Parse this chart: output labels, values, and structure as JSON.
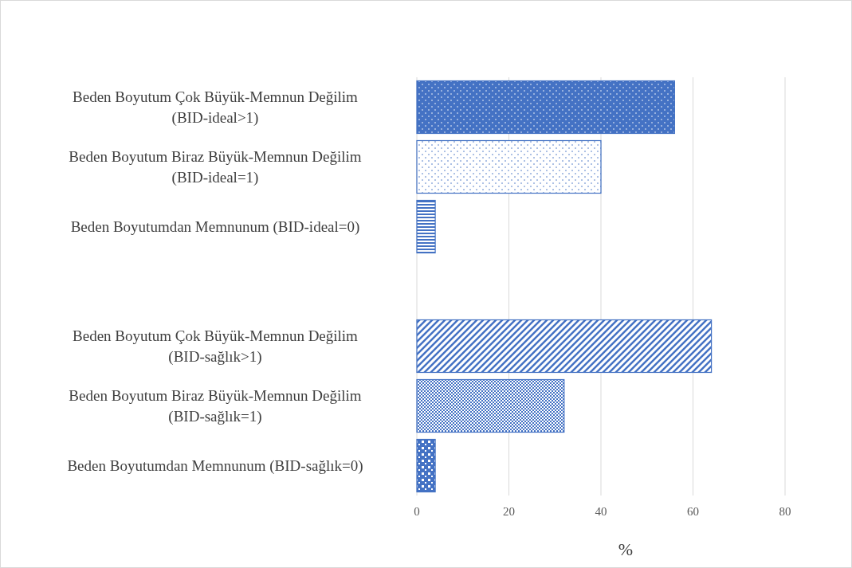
{
  "chart_data": {
    "type": "bar",
    "orientation": "horizontal",
    "xlabel": "%",
    "categories": [
      "Beden Boyutum Çok Büyük-Memnun Değilim (BID-ideal>1)",
      "Beden Boyutum Biraz Büyük-Memnun Değilim (BID-ideal=1)",
      "Beden Boyutumdan Memnunum (BID-ideal=0)",
      null,
      "Beden Boyutum Çok Büyük-Memnun Değilim (BID-sağlık>1)",
      "Beden Boyutum Biraz Büyük-Memnun Değilim (BID-sağlık=1)",
      "Beden Boyutumdan Memnunum (BID-sağlık=0)"
    ],
    "values": [
      56,
      40,
      4,
      null,
      64,
      32,
      4
    ],
    "color": "#4472c4",
    "xlim": [
      0,
      80
    ],
    "xticks": [
      0,
      20,
      40,
      60,
      80
    ],
    "grid": "x"
  }
}
